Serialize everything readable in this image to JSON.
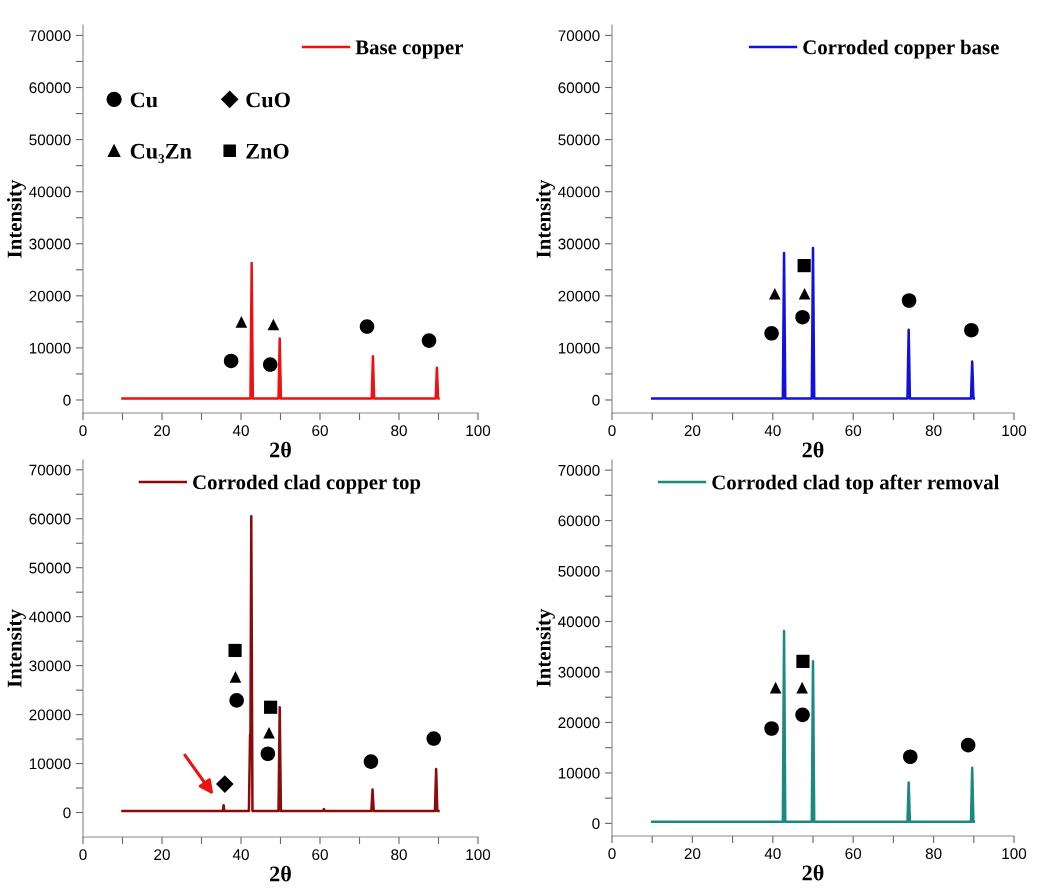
{
  "chart_data": [
    {
      "type": "line",
      "xlabel": "2θ",
      "ylabel": "Intensity",
      "xlim": [
        0,
        100
      ],
      "ylim": [
        -2500,
        72000
      ],
      "xticks": [
        0,
        {
          "value": 10,
          "label": null
        },
        20,
        {
          "value": 30,
          "label": null
        },
        40,
        {
          "value": 50,
          "label": null
        },
        60,
        {
          "value": 70,
          "label": null
        },
        80,
        {
          "value": 90,
          "label": null
        },
        100
      ],
      "yticks": [
        0,
        {
          "value": 5000,
          "label": null
        },
        10000,
        {
          "value": 15000,
          "label": null
        },
        20000,
        {
          "value": 25000,
          "label": null
        },
        30000,
        {
          "value": 35000,
          "label": null
        },
        40000,
        {
          "value": 45000,
          "label": null
        },
        50000,
        {
          "value": 55000,
          "label": null
        },
        60000,
        {
          "value": 65000,
          "label": null
        },
        70000
      ],
      "legend": "top right",
      "series": [
        {
          "name": "Base copper",
          "color": "#ee1111",
          "x": [
            10,
            42.4,
            42.7,
            43.0,
            49.5,
            49.8,
            50.1,
            73.1,
            73.4,
            73.7,
            89.3,
            89.6,
            89.9,
            90
          ],
          "values": [
            300,
            300,
            26300,
            300,
            300,
            11800,
            300,
            300,
            8400,
            300,
            300,
            6200,
            300,
            300
          ]
        },
        {
          "name": "Cu",
          "type": "scatter",
          "marker": "circle",
          "color": "#000000",
          "x": [
            37.5,
            47.4,
            71.9,
            87.6
          ],
          "values": [
            7500,
            6800,
            14100,
            11400
          ]
        },
        {
          "name": "CuO",
          "type": "scatter",
          "marker": "diamond",
          "color": "#000000"
        },
        {
          "name": "Cu₃Zn",
          "type": "scatter",
          "marker": "triangle",
          "color": "#000000",
          "x": [
            40.1,
            48.2
          ],
          "values": [
            15000,
            14500
          ]
        },
        {
          "name": "ZnO",
          "type": "scatter",
          "marker": "square",
          "color": "#000000"
        }
      ]
    },
    {
      "type": "line",
      "xlabel": "2θ",
      "ylabel": "Intensity",
      "xlim": [
        0,
        100
      ],
      "ylim": [
        -2500,
        72000
      ],
      "xticks": [
        0,
        {
          "value": 10,
          "label": null
        },
        20,
        {
          "value": 30,
          "label": null
        },
        40,
        {
          "value": 50,
          "label": null
        },
        60,
        {
          "value": 70,
          "label": null
        },
        80,
        {
          "value": 90,
          "label": null
        },
        100
      ],
      "yticks": [
        0,
        {
          "value": 5000,
          "label": null
        },
        10000,
        {
          "value": 15000,
          "label": null
        },
        20000,
        {
          "value": 25000,
          "label": null
        },
        30000,
        {
          "value": 35000,
          "label": null
        },
        40000,
        {
          "value": 45000,
          "label": null
        },
        50000,
        {
          "value": 55000,
          "label": null
        },
        60000,
        {
          "value": 65000,
          "label": null
        },
        70000
      ],
      "legend": "top right",
      "series": [
        {
          "name": "Corroded copper base",
          "color": "#1010e0",
          "x": [
            10,
            42.5,
            42.8,
            43.1,
            49.7,
            50.0,
            50.3,
            73.5,
            73.8,
            74.1,
            89.3,
            89.6,
            89.9,
            90
          ],
          "values": [
            300,
            300,
            28200,
            300,
            300,
            29200,
            300,
            300,
            13500,
            300,
            300,
            7400,
            300,
            300
          ]
        },
        {
          "type": "scatter",
          "marker": "circle",
          "color": "#000000",
          "x": [
            39.7,
            47.4,
            73.9,
            89.4
          ],
          "values": [
            12800,
            15900,
            19100,
            13400
          ]
        },
        {
          "type": "scatter",
          "marker": "triangle",
          "color": "#000000",
          "x": [
            40.5,
            47.9
          ],
          "values": [
            20400,
            20400
          ]
        },
        {
          "type": "scatter",
          "marker": "square",
          "color": "#000000",
          "x": [
            47.8
          ],
          "values": [
            25800
          ]
        }
      ]
    },
    {
      "type": "line",
      "xlabel": "2θ",
      "ylabel": "Intensity",
      "xlim": [
        0,
        100
      ],
      "ylim": [
        -5000,
        72000
      ],
      "xticks": [
        0,
        {
          "value": 10,
          "label": null
        },
        20,
        {
          "value": 30,
          "label": null
        },
        40,
        {
          "value": 50,
          "label": null
        },
        60,
        {
          "value": 70,
          "label": null
        },
        80,
        {
          "value": 90,
          "label": null
        },
        100
      ],
      "yticks": [
        0,
        {
          "value": 5000,
          "label": null
        },
        10000,
        {
          "value": 15000,
          "label": null
        },
        20000,
        {
          "value": 25000,
          "label": null
        },
        30000,
        {
          "value": 35000,
          "label": null
        },
        40000,
        {
          "value": 45000,
          "label": null
        },
        50000,
        {
          "value": 55000,
          "label": null
        },
        60000,
        {
          "value": 65000,
          "label": null
        },
        70000
      ],
      "legend": "top",
      "series": [
        {
          "name": "Corroded clad copper top",
          "color": "#8b0a0a",
          "x": [
            10,
            35.4,
            35.6,
            35.8,
            42.0,
            42.3,
            42.4,
            42.6,
            42.9,
            49.5,
            49.8,
            50.1,
            60.8,
            61.0,
            61.2,
            73.0,
            73.3,
            73.6,
            89.1,
            89.4,
            89.7,
            90
          ],
          "values": [
            300,
            300,
            1500,
            300,
            300,
            16000,
            16000,
            60500,
            300,
            300,
            21500,
            300,
            300,
            700,
            300,
            300,
            4700,
            300,
            300,
            8900,
            300,
            300
          ]
        },
        {
          "type": "scatter",
          "marker": "circle",
          "color": "#000000",
          "x": [
            38.9,
            46.8,
            72.9,
            88.8
          ],
          "values": [
            22900,
            12000,
            10400,
            15100
          ]
        },
        {
          "type": "scatter",
          "marker": "diamond",
          "color": "#000000",
          "x": [
            35.9
          ],
          "values": [
            5800
          ]
        },
        {
          "type": "scatter",
          "marker": "triangle",
          "color": "#000000",
          "x": [
            38.6,
            47.1
          ],
          "values": [
            27700,
            16300
          ]
        },
        {
          "type": "scatter",
          "marker": "square",
          "color": "#000000",
          "x": [
            38.5,
            47.5
          ],
          "values": [
            33100,
            21500
          ]
        }
      ]
    },
    {
      "type": "line",
      "xlabel": "2θ",
      "ylabel": "Intensity",
      "xlim": [
        0,
        100
      ],
      "ylim": [
        -2500,
        72000
      ],
      "xticks": [
        0,
        {
          "value": 10,
          "label": null
        },
        20,
        {
          "value": 30,
          "label": null
        },
        40,
        {
          "value": 50,
          "label": null
        },
        60,
        {
          "value": 70,
          "label": null
        },
        80,
        {
          "value": 90,
          "label": null
        },
        100
      ],
      "yticks": [
        0,
        {
          "value": 5000,
          "label": null
        },
        10000,
        {
          "value": 15000,
          "label": null
        },
        20000,
        {
          "value": 25000,
          "label": null
        },
        30000,
        {
          "value": 35000,
          "label": null
        },
        40000,
        {
          "value": 45000,
          "label": null
        },
        50000,
        {
          "value": 55000,
          "label": null
        },
        60000,
        {
          "value": 65000,
          "label": null
        },
        70000
      ],
      "legend": "top right",
      "series": [
        {
          "name": "Corroded clad top after removal",
          "color": "#1a8a80",
          "x": [
            10,
            42.5,
            42.8,
            43.1,
            49.7,
            50.0,
            50.3,
            73.5,
            73.8,
            74.1,
            89.3,
            89.6,
            89.9,
            90
          ],
          "values": [
            300,
            300,
            38100,
            300,
            300,
            32100,
            300,
            300,
            8100,
            300,
            300,
            11000,
            300,
            300
          ]
        },
        {
          "type": "scatter",
          "marker": "circle",
          "color": "#000000",
          "x": [
            39.7,
            47.4,
            74.2,
            88.6
          ],
          "values": [
            18800,
            21500,
            13200,
            15500
          ]
        },
        {
          "type": "scatter",
          "marker": "triangle",
          "color": "#000000",
          "x": [
            40.7,
            47.3
          ],
          "values": [
            26900,
            26900
          ]
        },
        {
          "type": "scatter",
          "marker": "square",
          "color": "#000000",
          "x": [
            47.5
          ],
          "values": [
            32100
          ]
        }
      ]
    }
  ]
}
